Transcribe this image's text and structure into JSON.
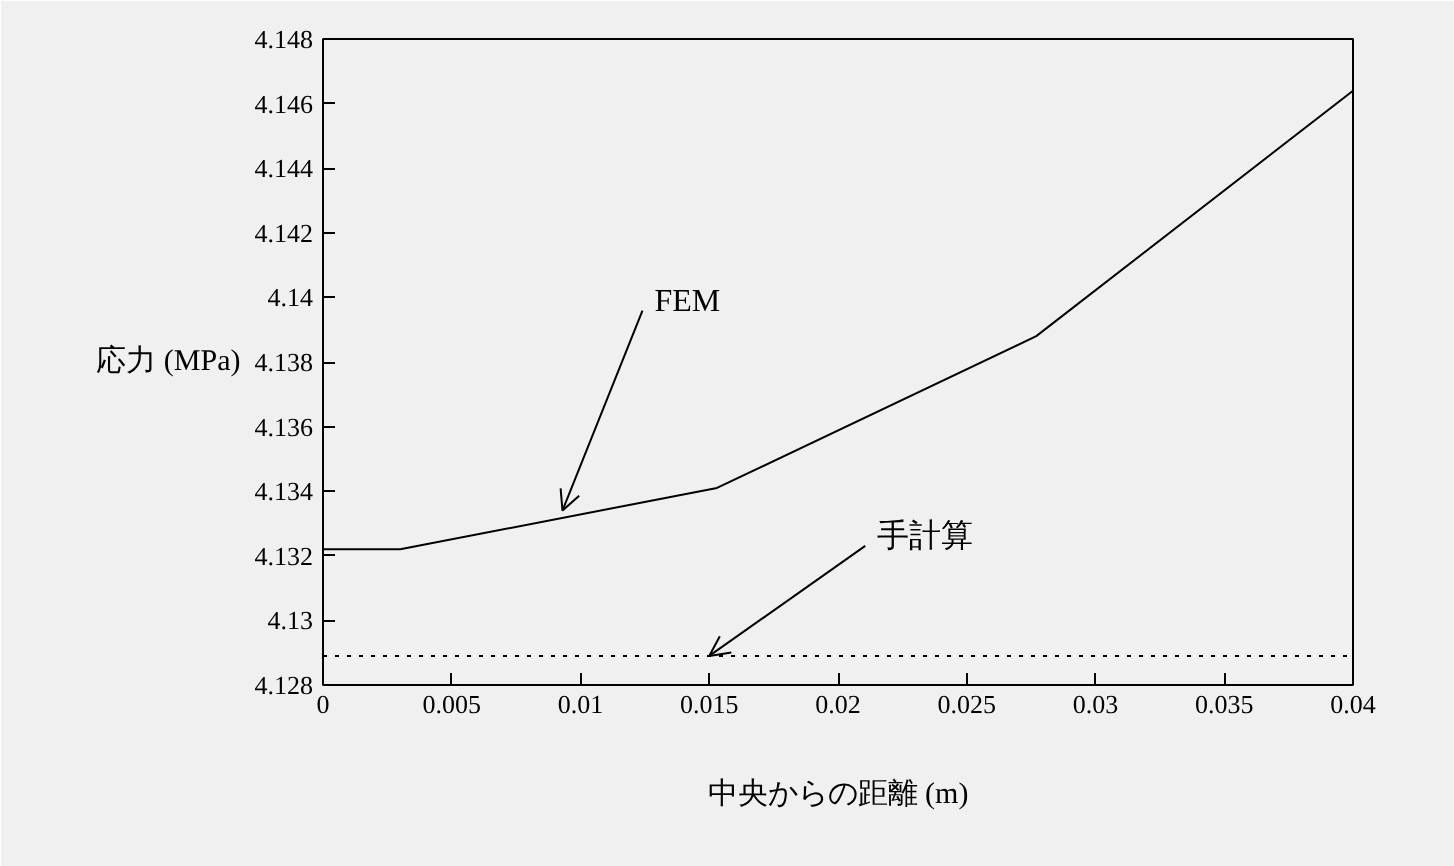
{
  "chart_data": {
    "type": "line",
    "xlabel": "中央からの距離 (m)",
    "ylabel": "応力 (MPa)",
    "xlim": [
      0,
      0.04
    ],
    "ylim": [
      4.128,
      4.148
    ],
    "xticks": [
      0,
      0.005,
      0.01,
      0.015,
      0.02,
      0.025,
      0.03,
      0.035,
      0.04
    ],
    "yticks": [
      4.128,
      4.13,
      4.132,
      4.134,
      4.136,
      4.138,
      4.14,
      4.142,
      4.144,
      4.146,
      4.148
    ],
    "grid": false,
    "series": [
      {
        "color": "#000000",
        "line_style": "solid",
        "x": [
          0,
          0.003,
          0.0153,
          0.0277,
          0.04
        ],
        "values": [
          4.1322,
          4.1322,
          4.1341,
          4.1388,
          4.1464
        ]
      },
      {
        "color": "#000000",
        "line_style": "dotted",
        "x": [
          0,
          0.04
        ],
        "values": [
          4.1289,
          4.1289
        ]
      }
    ],
    "annotations": [
      {
        "text": "FEM",
        "x": 0.0093,
        "y": 4.1334
      },
      {
        "text": "手計算",
        "x": 0.015,
        "y": 4.1289
      }
    ]
  }
}
